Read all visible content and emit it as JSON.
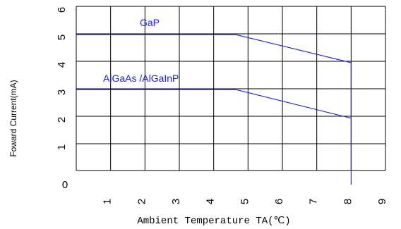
{
  "chart_data": {
    "type": "line",
    "xlabel": "Ambient Temperature TA(℃)",
    "ylabel": "Foward Current(mA)",
    "xlim": [
      0,
      90
    ],
    "ylim": [
      0,
      60
    ],
    "x_ticks": [
      "1",
      "2",
      "3",
      "4",
      "5",
      "6",
      "7",
      "8",
      "9"
    ],
    "x_tick_values": [
      10,
      20,
      30,
      40,
      50,
      60,
      70,
      80,
      90
    ],
    "y_ticks": [
      "0",
      "1",
      "2",
      "3",
      "4",
      "5",
      "6"
    ],
    "y_tick_values": [
      0,
      10,
      20,
      30,
      40,
      50,
      60
    ],
    "grid": true,
    "series": [
      {
        "name": "GaP",
        "color": "#1a1adb",
        "x": [
          0,
          46.5,
          80,
          80
        ],
        "y": [
          49.7,
          49.7,
          39.5,
          0
        ]
      },
      {
        "name": "AlGaAs /AlGaInP",
        "color": "#1a1adb",
        "x": [
          0,
          46.5,
          80
        ],
        "y": [
          29.7,
          29.7,
          19.3
        ]
      }
    ]
  }
}
